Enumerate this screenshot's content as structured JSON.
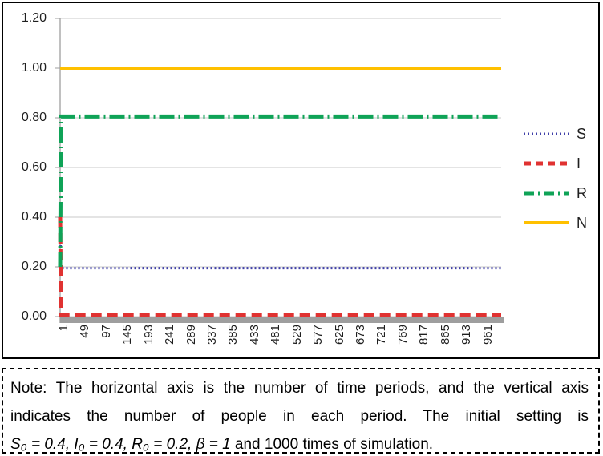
{
  "chart_data": {
    "type": "line",
    "title": "",
    "xlabel": "",
    "ylabel": "",
    "xlim": [
      1,
      1000
    ],
    "ylim": [
      0,
      1.2
    ],
    "grid": true,
    "ytick_labels": [
      "0.00",
      "0.20",
      "0.40",
      "0.60",
      "0.80",
      "1.00",
      "1.20"
    ],
    "xtick_labels": [
      "1",
      "49",
      "97",
      "145",
      "193",
      "241",
      "289",
      "337",
      "385",
      "433",
      "481",
      "529",
      "577",
      "625",
      "673",
      "721",
      "769",
      "817",
      "865",
      "913",
      "961"
    ],
    "legend_position": "right",
    "series": [
      {
        "name": "S",
        "color": "#3F3FA8",
        "style": "dotted",
        "points": [
          [
            1,
            0.4
          ],
          [
            3,
            0.195
          ],
          [
            1000,
            0.195
          ]
        ]
      },
      {
        "name": "I",
        "color": "#E03231",
        "style": "dashed",
        "points": [
          [
            1,
            0.4
          ],
          [
            3,
            0.005
          ],
          [
            1000,
            0.005
          ]
        ]
      },
      {
        "name": "R",
        "color": "#0FA357",
        "style": "dashdot",
        "points": [
          [
            1,
            0.2
          ],
          [
            3,
            0.805
          ],
          [
            1000,
            0.805
          ]
        ]
      },
      {
        "name": "N",
        "color": "#FFC000",
        "style": "solid",
        "points": [
          [
            1,
            1.0
          ],
          [
            1000,
            1.0
          ]
        ]
      }
    ]
  },
  "note": {
    "line1": "Note: The horizontal axis is the number of time periods, and the vertical axis",
    "line2": "indicates the number of people in each period. The initial setting is",
    "line3_math": "S₀ = 0.4, I₀ = 0.4, R₀ = 0.2, β = 1",
    "line3_tail": " and 1000 times of simulation."
  }
}
